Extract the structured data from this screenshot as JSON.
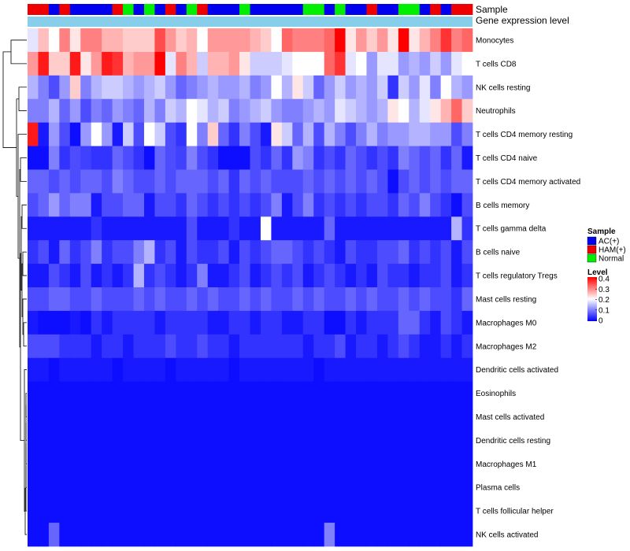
{
  "chart_data": {
    "type": "heatmap",
    "title": "",
    "annotation_labels": [
      "Sample",
      "Gene expression level"
    ],
    "sample_groups": [
      "HAM(+)",
      "HAM(+)",
      "AC(+)",
      "HAM(+)",
      "AC(+)",
      "AC(+)",
      "AC(+)",
      "AC(+)",
      "HAM(+)",
      "Normal",
      "AC(+)",
      "Normal",
      "AC(+)",
      "HAM(+)",
      "AC(+)",
      "Normal",
      "HAM(+)",
      "AC(+)",
      "AC(+)",
      "AC(+)",
      "Normal",
      "AC(+)",
      "AC(+)",
      "AC(+)",
      "AC(+)",
      "AC(+)",
      "Normal",
      "Normal",
      "AC(+)",
      "Normal",
      "AC(+)",
      "AC(+)",
      "HAM(+)",
      "AC(+)",
      "AC(+)",
      "Normal",
      "Normal",
      "AC(+)",
      "HAM(+)",
      "AC(+)",
      "HAM(+)",
      "HAM(+)"
    ],
    "rows": [
      "Monocytes",
      "T cells CD8",
      "NK cells resting",
      "Neutrophils",
      "T cells CD4 memory resting",
      "T cells CD4 naive",
      "T cells CD4 memory activated",
      "B cells memory",
      "T cells gamma delta",
      "B cells naive",
      "T cells regulatory  Tregs",
      "Mast cells resting",
      "Macrophages M0",
      "Macrophages M2",
      "Dendritic cells activated",
      "Eosinophils",
      "Mast cells activated",
      "Dendritic cells resting",
      "Macrophages M1",
      "Plasma cells",
      "T cells follicular helper",
      "NK cells activated"
    ],
    "values": [
      [
        0.18,
        0.25,
        0.2,
        0.3,
        0.22,
        0.3,
        0.3,
        0.26,
        0.26,
        0.24,
        0.24,
        0.24,
        0.34,
        0.28,
        0.24,
        0.26,
        0.2,
        0.28,
        0.28,
        0.28,
        0.28,
        0.26,
        0.24,
        0.2,
        0.32,
        0.3,
        0.3,
        0.3,
        0.32,
        0.4,
        0.22,
        0.28,
        0.24,
        0.28,
        0.22,
        0.4,
        0.22,
        0.26,
        0.3,
        0.36,
        0.3,
        0.32
      ],
      [
        0.28,
        0.38,
        0.24,
        0.24,
        0.38,
        0.22,
        0.28,
        0.38,
        0.36,
        0.26,
        0.28,
        0.28,
        0.4,
        0.18,
        0.3,
        0.26,
        0.16,
        0.26,
        0.26,
        0.28,
        0.22,
        0.16,
        0.16,
        0.16,
        0.18,
        0.2,
        0.2,
        0.2,
        0.32,
        0.36,
        0.18,
        0.2,
        0.12,
        0.18,
        0.18,
        0.12,
        0.14,
        0.12,
        0.16,
        0.12,
        0.18,
        0.2
      ],
      [
        0.14,
        0.1,
        0.06,
        0.12,
        0.24,
        0.1,
        0.14,
        0.16,
        0.16,
        0.14,
        0.12,
        0.14,
        0.16,
        0.12,
        0.08,
        0.1,
        0.12,
        0.14,
        0.12,
        0.12,
        0.14,
        0.1,
        0.12,
        0.2,
        0.14,
        0.22,
        0.16,
        0.08,
        0.12,
        0.16,
        0.12,
        0.14,
        0.12,
        0.16,
        0.04,
        0.16,
        0.12,
        0.18,
        0.1,
        0.2,
        0.14,
        0.12
      ],
      [
        0.1,
        0.1,
        0.14,
        0.08,
        0.12,
        0.06,
        0.1,
        0.08,
        0.12,
        0.1,
        0.08,
        0.14,
        0.1,
        0.16,
        0.14,
        0.2,
        0.18,
        0.14,
        0.16,
        0.1,
        0.12,
        0.14,
        0.16,
        0.12,
        0.1,
        0.1,
        0.12,
        0.14,
        0.12,
        0.18,
        0.16,
        0.14,
        0.12,
        0.14,
        0.22,
        0.2,
        0.14,
        0.18,
        0.22,
        0.26,
        0.32,
        0.24
      ],
      [
        0.38,
        0.02,
        0.12,
        0.06,
        0.01,
        0.12,
        0.2,
        0.12,
        0.02,
        0.16,
        0.06,
        0.2,
        0.16,
        0.06,
        0.04,
        0.2,
        0.1,
        0.24,
        0.08,
        0.04,
        0.1,
        0.06,
        0.02,
        0.22,
        0.16,
        0.08,
        0.14,
        0.06,
        0.14,
        0.1,
        0.06,
        0.1,
        0.14,
        0.1,
        0.12,
        0.12,
        0.14,
        0.14,
        0.12,
        0.12,
        0.06,
        0.1
      ],
      [
        0.01,
        0.01,
        0.1,
        0.04,
        0.06,
        0.05,
        0.04,
        0.04,
        0.08,
        0.06,
        0.04,
        0.01,
        0.08,
        0.06,
        0.05,
        0.1,
        0.06,
        0.04,
        0.01,
        0.01,
        0.01,
        0.06,
        0.04,
        0.08,
        0.04,
        0.12,
        0.1,
        0.04,
        0.06,
        0.04,
        0.08,
        0.06,
        0.04,
        0.06,
        0.04,
        0.1,
        0.08,
        0.06,
        0.08,
        0.04,
        0.08,
        0.02
      ],
      [
        0.08,
        0.08,
        0.06,
        0.08,
        0.06,
        0.08,
        0.08,
        0.06,
        0.1,
        0.08,
        0.06,
        0.06,
        0.08,
        0.06,
        0.08,
        0.08,
        0.08,
        0.06,
        0.08,
        0.04,
        0.08,
        0.06,
        0.08,
        0.06,
        0.06,
        0.06,
        0.08,
        0.06,
        0.08,
        0.06,
        0.08,
        0.06,
        0.08,
        0.06,
        0.01,
        0.06,
        0.08,
        0.06,
        0.08,
        0.06,
        0.08,
        0.08
      ],
      [
        0.06,
        0.08,
        0.12,
        0.08,
        0.1,
        0.1,
        0.02,
        0.06,
        0.06,
        0.08,
        0.08,
        0.02,
        0.06,
        0.06,
        0.04,
        0.08,
        0.06,
        0.04,
        0.06,
        0.04,
        0.06,
        0.04,
        0.06,
        0.1,
        0.02,
        0.06,
        0.1,
        0.04,
        0.06,
        0.04,
        0.06,
        0.04,
        0.06,
        0.06,
        0.04,
        0.08,
        0.06,
        0.1,
        0.06,
        0.04,
        0.01,
        0.06
      ],
      [
        0.02,
        0.02,
        0.02,
        0.02,
        0.02,
        0.02,
        0.04,
        0.02,
        0.02,
        0.02,
        0.02,
        0.02,
        0.02,
        0.02,
        0.02,
        0.06,
        0.02,
        0.02,
        0.02,
        0.04,
        0.02,
        0.02,
        0.2,
        0.02,
        0.02,
        0.02,
        0.02,
        0.02,
        0.08,
        0.02,
        0.02,
        0.02,
        0.02,
        0.02,
        0.02,
        0.02,
        0.02,
        0.02,
        0.02,
        0.02,
        0.14,
        0.04
      ],
      [
        0.04,
        0.06,
        0.02,
        0.08,
        0.04,
        0.06,
        0.1,
        0.04,
        0.06,
        0.06,
        0.1,
        0.14,
        0.04,
        0.06,
        0.02,
        0.06,
        0.04,
        0.04,
        0.06,
        0.02,
        0.06,
        0.04,
        0.06,
        0.08,
        0.08,
        0.06,
        0.04,
        0.06,
        0.04,
        0.02,
        0.06,
        0.04,
        0.04,
        0.06,
        0.06,
        0.08,
        0.04,
        0.06,
        0.04,
        0.06,
        0.02,
        0.06
      ],
      [
        0.02,
        0.02,
        0.06,
        0.04,
        0.02,
        0.06,
        0.02,
        0.04,
        0.02,
        0.04,
        0.14,
        0.04,
        0.06,
        0.04,
        0.02,
        0.04,
        0.1,
        0.02,
        0.02,
        0.04,
        0.06,
        0.02,
        0.04,
        0.06,
        0.04,
        0.06,
        0.02,
        0.04,
        0.06,
        0.04,
        0.02,
        0.04,
        0.02,
        0.06,
        0.04,
        0.04,
        0.02,
        0.04,
        0.04,
        0.06,
        0.02,
        0.04
      ],
      [
        0.06,
        0.06,
        0.08,
        0.08,
        0.06,
        0.06,
        0.08,
        0.06,
        0.06,
        0.06,
        0.08,
        0.06,
        0.08,
        0.06,
        0.06,
        0.08,
        0.06,
        0.08,
        0.06,
        0.06,
        0.08,
        0.06,
        0.08,
        0.06,
        0.06,
        0.08,
        0.06,
        0.08,
        0.06,
        0.06,
        0.08,
        0.06,
        0.08,
        0.06,
        0.06,
        0.08,
        0.06,
        0.08,
        0.06,
        0.06,
        0.04,
        0.08
      ],
      [
        0.02,
        0.01,
        0.01,
        0.01,
        0.02,
        0.01,
        0.04,
        0.02,
        0.04,
        0.04,
        0.04,
        0.04,
        0.02,
        0.04,
        0.04,
        0.04,
        0.04,
        0.02,
        0.02,
        0.04,
        0.04,
        0.02,
        0.04,
        0.04,
        0.02,
        0.02,
        0.04,
        0.04,
        0.01,
        0.01,
        0.04,
        0.02,
        0.04,
        0.04,
        0.04,
        0.08,
        0.08,
        0.04,
        0.02,
        0.06,
        0.04,
        0.02
      ],
      [
        0.06,
        0.06,
        0.06,
        0.04,
        0.04,
        0.04,
        0.02,
        0.04,
        0.04,
        0.02,
        0.04,
        0.04,
        0.04,
        0.06,
        0.04,
        0.04,
        0.06,
        0.04,
        0.04,
        0.02,
        0.04,
        0.04,
        0.04,
        0.04,
        0.04,
        0.04,
        0.02,
        0.04,
        0.04,
        0.06,
        0.02,
        0.04,
        0.04,
        0.02,
        0.04,
        0.06,
        0.04,
        0.02,
        0.02,
        0.04,
        0.02,
        0.04
      ],
      [
        0.02,
        0.02,
        0.01,
        0.02,
        0.02,
        0.02,
        0.02,
        0.02,
        0.01,
        0.02,
        0.02,
        0.02,
        0.02,
        0.01,
        0.02,
        0.02,
        0.02,
        0.02,
        0.02,
        0.01,
        0.02,
        0.02,
        0.02,
        0.02,
        0.02,
        0.02,
        0.02,
        0.01,
        0.02,
        0.02,
        0.02,
        0.02,
        0.02,
        0.02,
        0.02,
        0.02,
        0.02,
        0.02,
        0.02,
        0.02,
        0.02,
        0.02
      ],
      [
        0.01,
        0.01,
        0.01,
        0.01,
        0.01,
        0.01,
        0.01,
        0.01,
        0.01,
        0.01,
        0.01,
        0.01,
        0.01,
        0.01,
        0.01,
        0.01,
        0.01,
        0.01,
        0.01,
        0.01,
        0.01,
        0.01,
        0.01,
        0.01,
        0.01,
        0.01,
        0.01,
        0.01,
        0.01,
        0.01,
        0.01,
        0.01,
        0.01,
        0.01,
        0.01,
        0.01,
        0.01,
        0.01,
        0.01,
        0.01,
        0.01,
        0.01
      ],
      [
        0.01,
        0.01,
        0.01,
        0.01,
        0.01,
        0.01,
        0.01,
        0.01,
        0.01,
        0.01,
        0.01,
        0.01,
        0.01,
        0.01,
        0.01,
        0.01,
        0.01,
        0.01,
        0.01,
        0.01,
        0.01,
        0.01,
        0.01,
        0.01,
        0.01,
        0.01,
        0.01,
        0.01,
        0.01,
        0.01,
        0.01,
        0.01,
        0.01,
        0.01,
        0.01,
        0.01,
        0.01,
        0.01,
        0.01,
        0.01,
        0.01,
        0.01
      ],
      [
        0.01,
        0.01,
        0.01,
        0.01,
        0.01,
        0.01,
        0.01,
        0.01,
        0.01,
        0.01,
        0.01,
        0.01,
        0.01,
        0.01,
        0.01,
        0.01,
        0.01,
        0.01,
        0.01,
        0.01,
        0.01,
        0.01,
        0.01,
        0.01,
        0.01,
        0.01,
        0.01,
        0.01,
        0.01,
        0.01,
        0.01,
        0.01,
        0.01,
        0.01,
        0.01,
        0.01,
        0.01,
        0.01,
        0.01,
        0.01,
        0.01,
        0.01
      ],
      [
        0.01,
        0.01,
        0.01,
        0.01,
        0.01,
        0.01,
        0.01,
        0.01,
        0.01,
        0.01,
        0.01,
        0.01,
        0.01,
        0.01,
        0.01,
        0.01,
        0.01,
        0.01,
        0.01,
        0.01,
        0.01,
        0.01,
        0.01,
        0.01,
        0.01,
        0.01,
        0.01,
        0.01,
        0.01,
        0.01,
        0.01,
        0.01,
        0.01,
        0.01,
        0.01,
        0.01,
        0.01,
        0.01,
        0.01,
        0.01,
        0.01,
        0.01
      ],
      [
        0.01,
        0.01,
        0.01,
        0.01,
        0.01,
        0.01,
        0.01,
        0.01,
        0.01,
        0.01,
        0.01,
        0.01,
        0.01,
        0.01,
        0.01,
        0.01,
        0.01,
        0.01,
        0.01,
        0.01,
        0.01,
        0.01,
        0.01,
        0.01,
        0.01,
        0.01,
        0.01,
        0.01,
        0.01,
        0.01,
        0.01,
        0.01,
        0.01,
        0.01,
        0.01,
        0.01,
        0.01,
        0.01,
        0.01,
        0.01,
        0.01,
        0.01
      ],
      [
        0.01,
        0.01,
        0.01,
        0.01,
        0.01,
        0.01,
        0.01,
        0.01,
        0.01,
        0.01,
        0.01,
        0.01,
        0.01,
        0.01,
        0.01,
        0.01,
        0.01,
        0.01,
        0.01,
        0.01,
        0.01,
        0.01,
        0.01,
        0.01,
        0.01,
        0.01,
        0.01,
        0.01,
        0.01,
        0.01,
        0.01,
        0.01,
        0.01,
        0.01,
        0.01,
        0.01,
        0.01,
        0.01,
        0.01,
        0.01,
        0.01,
        0.01
      ],
      [
        0.01,
        0.01,
        0.08,
        0.01,
        0.01,
        0.01,
        0.01,
        0.01,
        0.01,
        0.01,
        0.01,
        0.01,
        0.01,
        0.01,
        0.01,
        0.01,
        0.01,
        0.01,
        0.01,
        0.01,
        0.01,
        0.01,
        0.01,
        0.01,
        0.01,
        0.01,
        0.01,
        0.01,
        0.1,
        0.01,
        0.01,
        0.01,
        0.01,
        0.01,
        0.01,
        0.01,
        0.01,
        0.01,
        0.01,
        0.01,
        0.01,
        0.01
      ]
    ],
    "legend": {
      "sample_title": "Sample",
      "sample_entries": [
        {
          "label": "AC(+)",
          "color": "#0000EE"
        },
        {
          "label": "HAM(+)",
          "color": "#EE0000"
        },
        {
          "label": "Normal",
          "color": "#00EE00"
        }
      ],
      "level_title": "Level",
      "level_ticks": [
        "0.4",
        "0.3",
        "0.2",
        "0.1",
        "0"
      ],
      "level_range": [
        0,
        0.4
      ]
    },
    "color_scale": {
      "low": "#0000FF",
      "mid": "#FFFFFF",
      "high": "#FF0000",
      "domain": [
        0,
        0.2,
        0.4
      ]
    },
    "expression_bar_color": "#87CEEB"
  }
}
